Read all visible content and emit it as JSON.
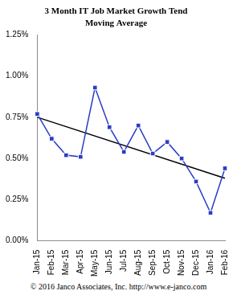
{
  "chart_data": {
    "type": "line",
    "title": "3 Month IT Job Market Growth Tend",
    "subtitle": "Moving Average",
    "annotations": [
      "© 2016 Janco Associates, Inc. http://www.e-janco.com"
    ],
    "categories": [
      "Jan-15",
      "Feb-15",
      "Mar-15",
      "Apr-15",
      "May-15",
      "Jun-15",
      "Jul-15",
      "Aug-15",
      "Sep-15",
      "Oct-15",
      "Nov-15",
      "Dec-15",
      "Jan-16",
      "Feb-16"
    ],
    "series": [
      {
        "color": "#2b3cc4",
        "marker": "square",
        "values": [
          0.77,
          0.62,
          0.52,
          0.51,
          0.93,
          0.69,
          0.54,
          0.7,
          0.53,
          0.6,
          0.5,
          0.36,
          0.17,
          0.44
        ]
      },
      {
        "color": "#000000",
        "marker": "none",
        "line_style": "solid",
        "values": [
          0.75,
          null,
          null,
          null,
          null,
          null,
          null,
          null,
          null,
          null,
          null,
          null,
          null,
          0.38
        ]
      }
    ],
    "ylim": [
      0,
      1.25
    ],
    "yticks": [
      {
        "value": 0,
        "label": "0.00%"
      },
      {
        "value": 0.25,
        "label": "0.25%"
      },
      {
        "value": 0.5,
        "label": "0.50%"
      },
      {
        "value": 0.75,
        "label": "0.75%"
      },
      {
        "value": 1,
        "label": "1.00%"
      },
      {
        "value": 1.25,
        "label": "1.25%"
      }
    ],
    "grid": false
  }
}
